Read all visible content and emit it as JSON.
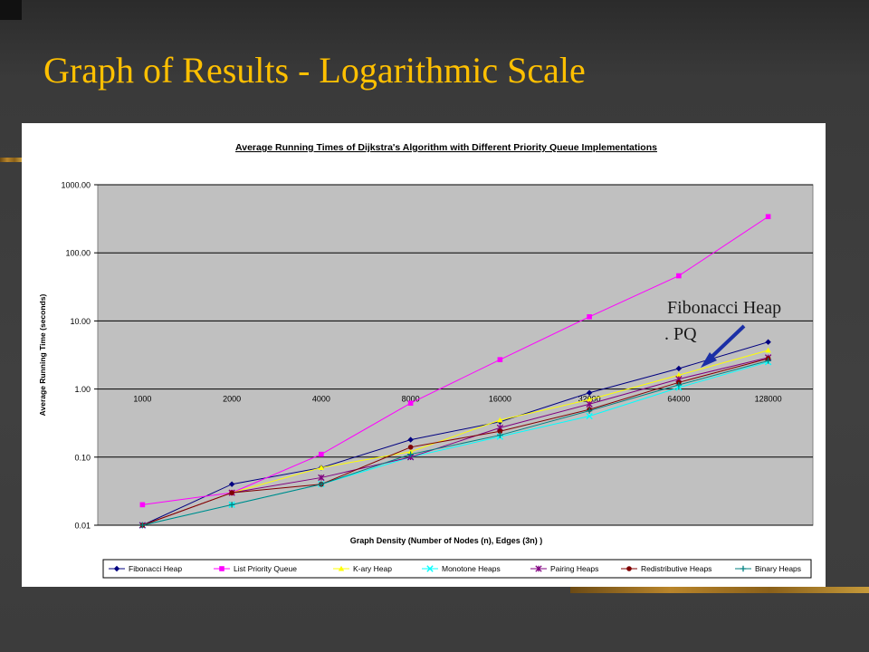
{
  "slide": {
    "title": "Graph of Results  - Logarithmic Scale"
  },
  "annotation": {
    "line1": "Fibonacci Heap",
    "line2": ".   PQ"
  },
  "colors": {
    "title": "#ffc000",
    "plot_bg": "#c0c0c0",
    "arrow": "#1b2fa6"
  },
  "chart_data": {
    "type": "line",
    "title": "Average Running Times of Dijkstra's Algorithm with Different Priority Queue Implementations",
    "xlabel": "Graph Density (Number of Nodes (n), Edges (3n) )",
    "ylabel": "Average Running Time (seconds)",
    "y_scale": "log",
    "ylim": [
      0.01,
      1000
    ],
    "y_ticks": [
      "0.01",
      "0.10",
      "1.00",
      "10.00",
      "100.00",
      "1000.00"
    ],
    "categories": [
      "1000",
      "2000",
      "4000",
      "8000",
      "16000",
      "32000",
      "64000",
      "128000"
    ],
    "grid": true,
    "legend_position": "bottom",
    "series": [
      {
        "name": "Fibonacci Heap",
        "color": "#000080",
        "marker": "diamond",
        "values": [
          0.01,
          0.04,
          0.07,
          0.18,
          0.33,
          0.88,
          2.0,
          4.9
        ]
      },
      {
        "name": "List Priority Queue",
        "color": "#ff00ff",
        "marker": "square",
        "values": [
          0.02,
          0.03,
          0.11,
          0.62,
          2.7,
          11.5,
          46,
          340
        ]
      },
      {
        "name": "K-ary Heap",
        "color": "#ffff00",
        "marker": "triangle",
        "values": [
          0.01,
          0.03,
          0.07,
          0.12,
          0.35,
          0.7,
          1.6,
          3.7
        ]
      },
      {
        "name": "Monotone Heaps",
        "color": "#00ffff",
        "marker": "x",
        "values": [
          0.01,
          0.02,
          0.04,
          0.1,
          0.2,
          0.4,
          1.05,
          2.5
        ]
      },
      {
        "name": "Pairing Heaps",
        "color": "#800080",
        "marker": "star",
        "values": [
          0.01,
          0.03,
          0.05,
          0.1,
          0.27,
          0.6,
          1.4,
          2.9
        ]
      },
      {
        "name": "Redistributive Heaps",
        "color": "#800000",
        "marker": "circle",
        "values": [
          0.01,
          0.03,
          0.04,
          0.14,
          0.24,
          0.5,
          1.25,
          2.8
        ]
      },
      {
        "name": "Binary Heaps",
        "color": "#008080",
        "marker": "plus",
        "values": [
          0.01,
          0.02,
          0.04,
          0.11,
          0.21,
          0.48,
          1.15,
          2.6
        ]
      }
    ]
  }
}
